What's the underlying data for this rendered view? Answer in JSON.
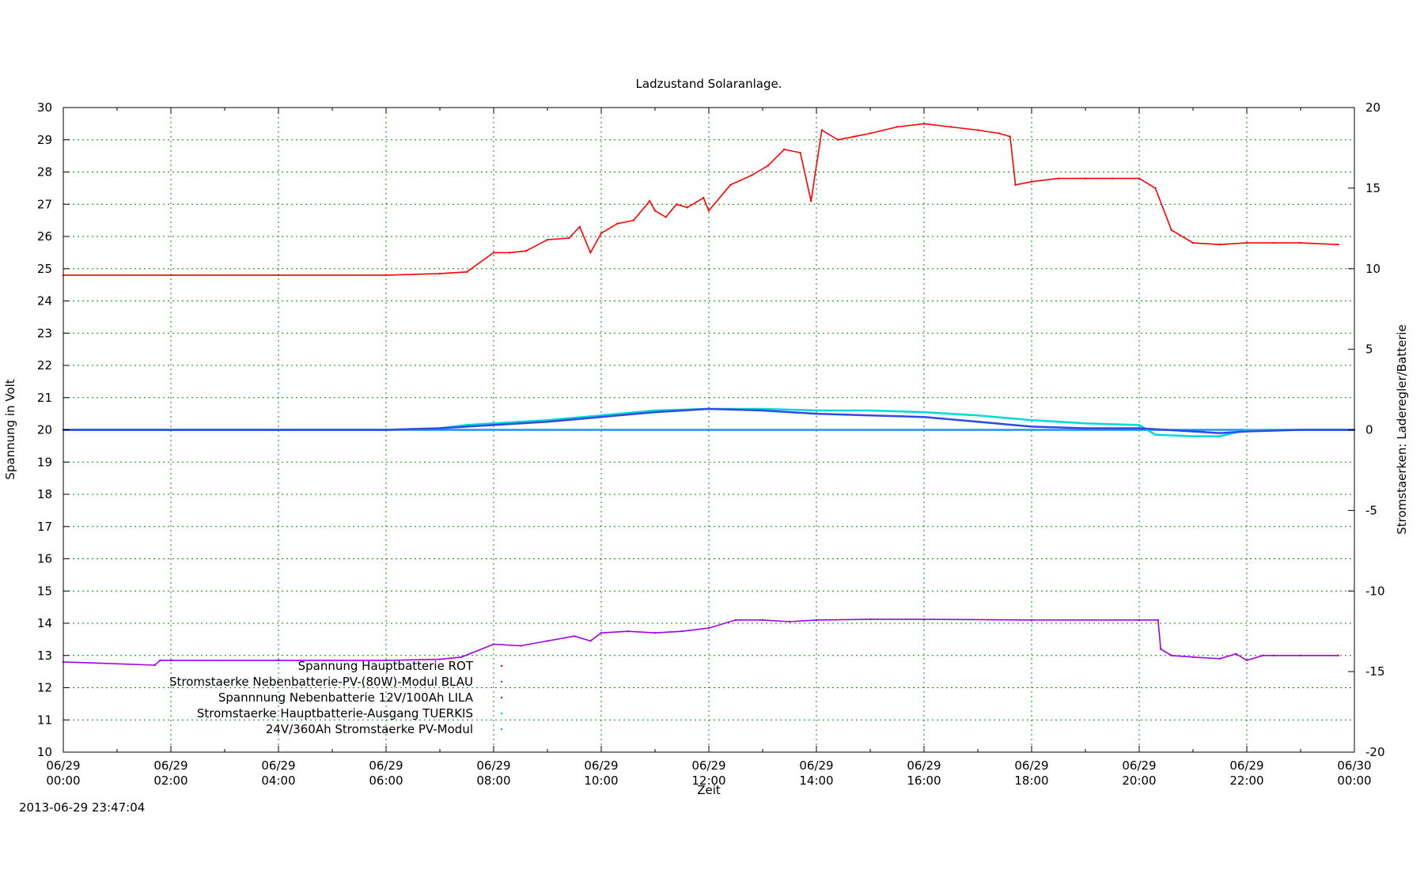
{
  "chart_data": {
    "type": "line",
    "title": "Ladzustand Solaranlage.",
    "xlabel": "Zeit",
    "ylabel": "Spannung in Volt",
    "y2label": "Stromstaerken: Laderegler/Batterie",
    "timestamp": "2013-06-29 23:47:04",
    "ylim": [
      10,
      30
    ],
    "y2lim": [
      -20,
      20
    ],
    "xlim_hours": [
      0,
      24
    ],
    "grid": true,
    "legend_position": "bottom-left",
    "yticks": [
      10,
      11,
      12,
      13,
      14,
      15,
      16,
      17,
      18,
      19,
      20,
      21,
      22,
      23,
      24,
      25,
      26,
      27,
      28,
      29,
      30
    ],
    "y2ticks": [
      -20,
      -15,
      -10,
      -5,
      0,
      5,
      10,
      15,
      20
    ],
    "xticks": [
      {
        "hour": 0,
        "date": "06/29",
        "time": "00:00"
      },
      {
        "hour": 2,
        "date": "06/29",
        "time": "02:00"
      },
      {
        "hour": 4,
        "date": "06/29",
        "time": "04:00"
      },
      {
        "hour": 6,
        "date": "06/29",
        "time": "06:00"
      },
      {
        "hour": 8,
        "date": "06/29",
        "time": "08:00"
      },
      {
        "hour": 10,
        "date": "06/29",
        "time": "10:00"
      },
      {
        "hour": 12,
        "date": "06/29",
        "time": "12:00"
      },
      {
        "hour": 14,
        "date": "06/29",
        "time": "14:00"
      },
      {
        "hour": 16,
        "date": "06/29",
        "time": "16:00"
      },
      {
        "hour": 18,
        "date": "06/29",
        "time": "18:00"
      },
      {
        "hour": 20,
        "date": "06/29",
        "time": "20:00"
      },
      {
        "hour": 22,
        "date": "06/29",
        "time": "22:00"
      },
      {
        "hour": 24,
        "date": "06/30",
        "time": "00:00"
      }
    ],
    "series": [
      {
        "name": "Spannung Hauptbatterie ROT",
        "color": "#ff0000",
        "axis": "y1",
        "x": [
          0,
          2,
          4,
          6,
          7,
          7.5,
          8,
          8.3,
          8.6,
          9,
          9.4,
          9.6,
          9.8,
          10,
          10.3,
          10.6,
          10.9,
          11,
          11.2,
          11.4,
          11.6,
          11.9,
          12,
          12.4,
          12.8,
          13.1,
          13.4,
          13.7,
          13.9,
          14.1,
          14.4,
          14.7,
          15,
          15.5,
          16,
          16.5,
          17,
          17.4,
          17.6,
          17.7,
          18,
          18.5,
          19,
          19.5,
          20,
          20.3,
          20.6,
          21,
          21.5,
          22,
          22.5,
          23,
          23.7
        ],
        "y": [
          24.8,
          24.8,
          24.8,
          24.8,
          24.85,
          24.9,
          25.5,
          25.5,
          25.55,
          25.9,
          25.95,
          26.3,
          25.5,
          26.1,
          26.4,
          26.5,
          27.1,
          26.8,
          26.6,
          27.0,
          26.9,
          27.2,
          26.8,
          27.6,
          27.9,
          28.2,
          28.7,
          28.6,
          27.1,
          29.3,
          29.0,
          29.1,
          29.2,
          29.4,
          29.5,
          29.4,
          29.3,
          29.2,
          29.1,
          27.6,
          27.7,
          27.8,
          27.8,
          27.8,
          27.8,
          27.5,
          26.2,
          25.8,
          25.75,
          25.8,
          25.8,
          25.8,
          25.75
        ]
      },
      {
        "name": "Stromstaerke Nebenbatterie-PV-(80W)-Modul BLAU",
        "color": "#2e4de0",
        "axis": "y2",
        "x": [
          0,
          6,
          7,
          7.5,
          8,
          9,
          10,
          11,
          12,
          13,
          14,
          15,
          16,
          17,
          18,
          19,
          20,
          20.5,
          21,
          21.5,
          22,
          23,
          24
        ],
        "y": [
          0,
          0,
          0.1,
          0.2,
          0.3,
          0.5,
          0.8,
          1.1,
          1.3,
          1.2,
          1.0,
          0.9,
          0.8,
          0.5,
          0.2,
          0.1,
          0.1,
          0,
          -0.1,
          -0.2,
          -0.1,
          0,
          0
        ]
      },
      {
        "name": "Spannnung Nebenbatterie 12V/100Ah LILA",
        "color": "#a000e8",
        "axis": "y1",
        "x": [
          0,
          1.7,
          1.8,
          2,
          4,
          6,
          7,
          7.4,
          8,
          8.5,
          9,
          9.5,
          9.8,
          10,
          10.5,
          11,
          11.5,
          12,
          12.5,
          13,
          13.5,
          14,
          15,
          16,
          18,
          20,
          20.35,
          20.4,
          20.6,
          21,
          21.5,
          21.8,
          22,
          22.3,
          22.5,
          23,
          23.7
        ],
        "y": [
          12.8,
          12.7,
          12.85,
          12.85,
          12.85,
          12.85,
          12.88,
          12.95,
          13.35,
          13.3,
          13.45,
          13.6,
          13.45,
          13.7,
          13.75,
          13.7,
          13.75,
          13.85,
          14.1,
          14.1,
          14.05,
          14.1,
          14.12,
          14.12,
          14.1,
          14.1,
          14.1,
          13.2,
          13.0,
          12.95,
          12.9,
          13.05,
          12.85,
          13.0,
          13.0,
          13.0,
          13.0
        ]
      },
      {
        "name": "Stromstaerke Hauptbatterie-Ausgang TUERKIS",
        "color": "#00d8d8",
        "axis": "y2",
        "x": [
          0,
          6,
          7,
          7.5,
          8,
          9,
          10,
          11,
          12,
          13,
          14,
          15,
          16,
          17,
          18,
          19,
          20,
          20.3,
          21,
          21.5,
          22,
          23,
          24
        ],
        "y": [
          0,
          0,
          0.1,
          0.3,
          0.4,
          0.6,
          0.9,
          1.2,
          1.3,
          1.3,
          1.2,
          1.2,
          1.1,
          0.9,
          0.6,
          0.4,
          0.3,
          -0.3,
          -0.4,
          -0.4,
          0,
          0,
          0
        ]
      },
      {
        "name": "24V/360Ah Stromstaerke PV-Modul",
        "color": "#1e90ff",
        "axis": "y2",
        "x": [
          0,
          24
        ],
        "y": [
          0,
          0
        ]
      }
    ]
  }
}
